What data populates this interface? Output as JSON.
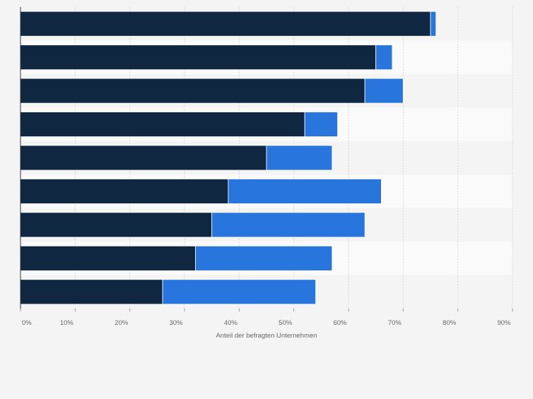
{
  "chart_data": {
    "type": "bar",
    "orientation": "horizontal",
    "stacked": true,
    "title": "",
    "xlabel": "Anteil der befragten Unternehmen",
    "ylabel": "",
    "xlim": [
      0,
      90
    ],
    "x_ticks": [
      "0%",
      "10%",
      "20%",
      "30%",
      "40%",
      "50%",
      "60%",
      "70%",
      "80%",
      "90%"
    ],
    "categories": [
      "",
      "",
      "",
      "",
      "",
      "",
      "",
      "",
      ""
    ],
    "grid": "vertical dashed",
    "legend": "none",
    "series": [
      {
        "color": "#0f2740",
        "values": [
          75,
          65,
          63,
          52,
          45,
          38,
          35,
          32,
          26
        ]
      },
      {
        "color": "#2876dd",
        "values": [
          1,
          3,
          7,
          6,
          12,
          28,
          28,
          25,
          28
        ]
      }
    ]
  }
}
